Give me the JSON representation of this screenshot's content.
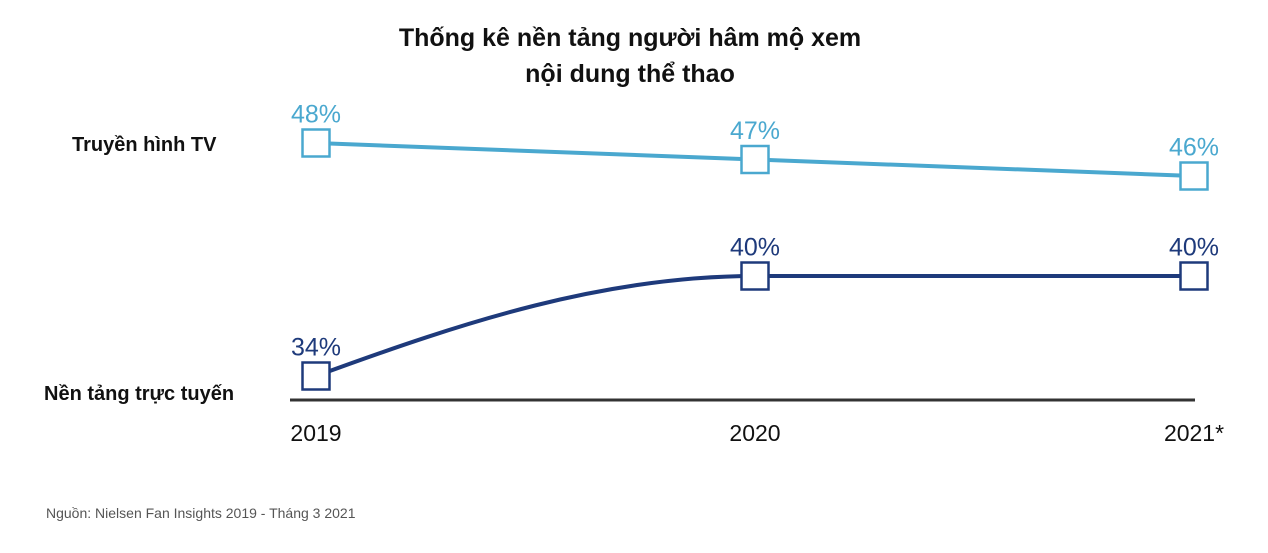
{
  "colors": {
    "series_tv": "#4aa8cf",
    "series_online": "#1e3a7b",
    "axis": "#333333"
  },
  "chart_data": {
    "type": "line",
    "title_lines": [
      "Thống kê nền tảng người hâm mộ xem",
      "nội dung thể thao"
    ],
    "xlabel": "",
    "ylabel": "",
    "categories": [
      "2019",
      "2020",
      "2021*"
    ],
    "y_unit": "%",
    "ylim": [
      34,
      48
    ],
    "grid": false,
    "legend": "none",
    "series": [
      {
        "name": "Truyền hình TV",
        "values": [
          48,
          47,
          46
        ],
        "labels": [
          "48%",
          "47%",
          "46%"
        ],
        "color": "#4aa8cf"
      },
      {
        "name": "Nền tảng trực tuyến",
        "values": [
          34,
          40,
          40
        ],
        "labels": [
          "34%",
          "40%",
          "40%"
        ],
        "color": "#1e3a7b"
      }
    ],
    "source": "Nguồn: Nielsen Fan Insights 2019 - Tháng 3 2021"
  }
}
